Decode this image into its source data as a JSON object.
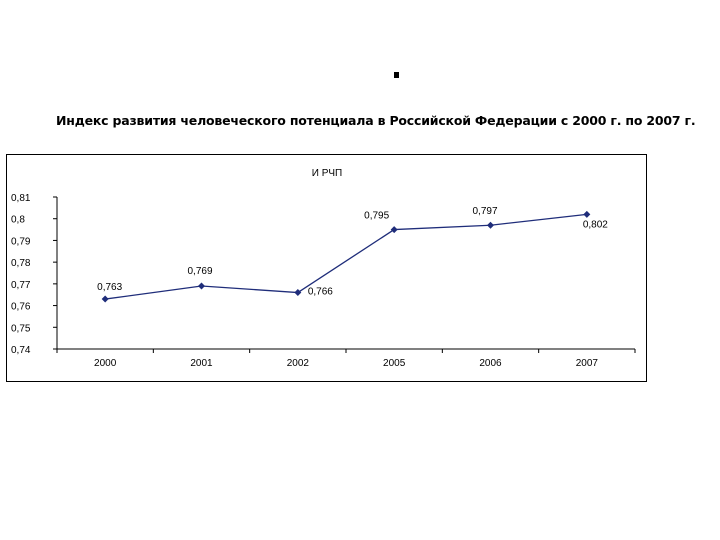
{
  "header": {
    "mark": "·",
    "title": "Индекс развития человеческого потенциала в Российской Федерации  с 2000 г. по 2007 г."
  },
  "colors": {
    "series": "#1f2d7a",
    "axis": "#000000"
  },
  "chart_data": {
    "type": "line",
    "title": "И РЧП",
    "xlabel": "",
    "ylabel": "",
    "categories": [
      "2000",
      "2001",
      "2002",
      "2005",
      "2006",
      "2007"
    ],
    "series": [
      {
        "values": [
          0.763,
          0.769,
          0.766,
          0.795,
          0.797,
          0.802
        ]
      }
    ],
    "data_labels": [
      "0,763",
      "0,769",
      "0,766",
      "0,795",
      "0,797",
      "0,802"
    ],
    "yticks": [
      "0,74",
      "0,75",
      "0,76",
      "0,77",
      "0,78",
      "0,79",
      "0,8",
      "0,81"
    ],
    "ylim": [
      0.74,
      0.81
    ],
    "grid": false,
    "legend": "none"
  }
}
